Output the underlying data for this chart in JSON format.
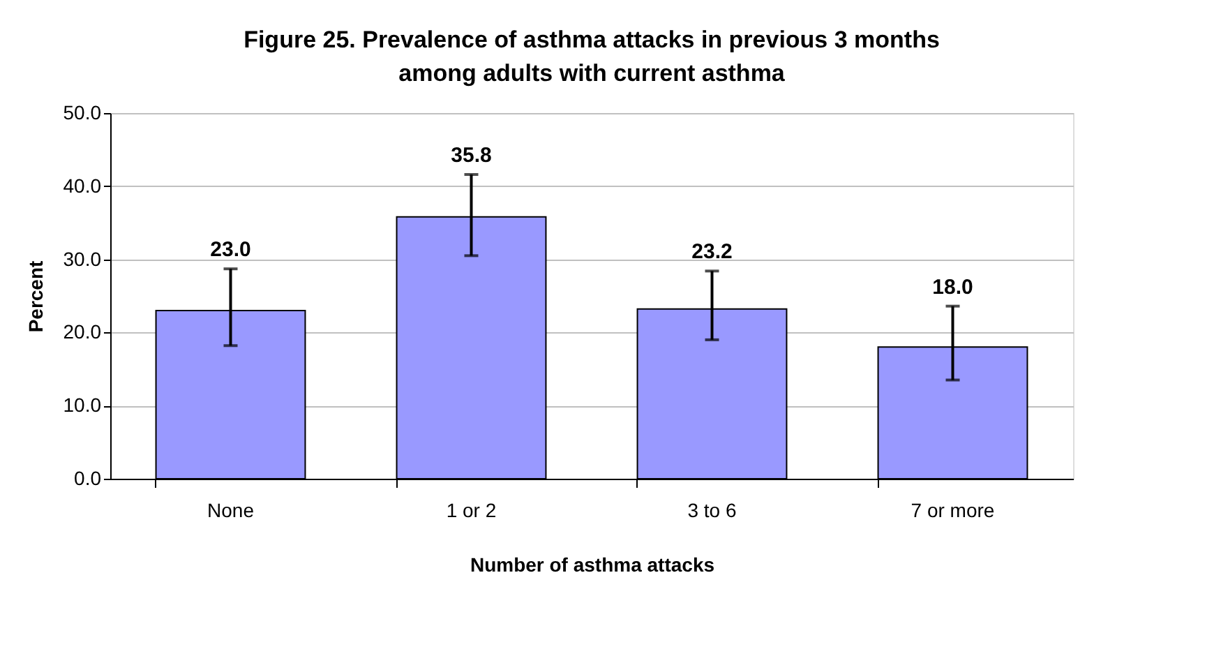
{
  "chart_data": {
    "type": "bar",
    "title": "Figure 25. Prevalence of asthma attacks in previous 3 months among adults with current asthma",
    "xlabel": "Number of asthma attacks",
    "ylabel": "Percent",
    "categories": [
      "None",
      "1 or 2",
      "3 to 6",
      "7 or more"
    ],
    "values": [
      23.0,
      35.8,
      23.2,
      18.0
    ],
    "color": "#9999ff",
    "errors": [
      [
        18.2,
        28.7
      ],
      [
        30.5,
        41.6
      ],
      [
        19.0,
        28.4
      ],
      [
        13.5,
        23.6
      ]
    ],
    "ylim": [
      0,
      50
    ],
    "yticks": [
      {
        "value": 0,
        "label": "0.0"
      },
      {
        "value": 10,
        "label": "10.0"
      },
      {
        "value": 20,
        "label": "20.0"
      },
      {
        "value": 30,
        "label": "30.0"
      },
      {
        "value": 40,
        "label": "40.0"
      },
      {
        "value": 50,
        "label": "50.0"
      }
    ],
    "grid": "y",
    "value_labels": [
      "23.0",
      "35.8",
      "23.2",
      "18.0"
    ]
  }
}
